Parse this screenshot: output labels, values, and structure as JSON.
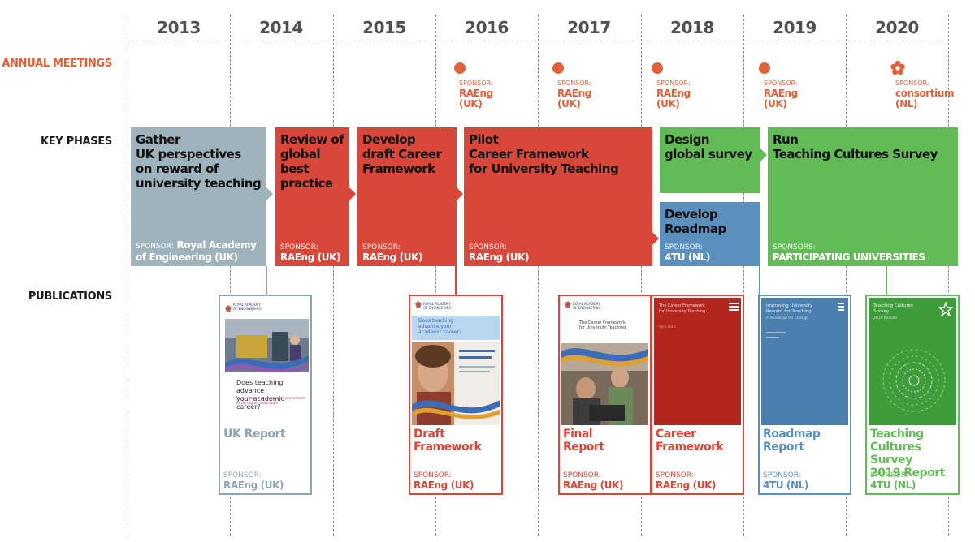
{
  "years": [
    "2013",
    "2014",
    "2015",
    "2016",
    "2017",
    "2018",
    "2019",
    "2020"
  ],
  "row_labels": {
    "meetings": "ANNUAL MEETINGS",
    "phases": "KEY PHASES",
    "publications": "PUBLICATIONS"
  },
  "meetings": [
    {
      "sponsor_label": "SPONSOR:",
      "sponsor": "RAEng",
      "country": "(UK)",
      "icon": "dot-icon"
    },
    {
      "sponsor_label": "SPONSOR:",
      "sponsor": "RAEng",
      "country": "(UK)",
      "icon": "dot-icon"
    },
    {
      "sponsor_label": "SPONSOR:",
      "sponsor": "RAEng",
      "country": "(UK)",
      "icon": "dot-icon"
    },
    {
      "sponsor_label": "SPONSOR:",
      "sponsor": "RAEng",
      "country": "(UK)",
      "icon": "dot-icon"
    },
    {
      "sponsor_label": "SPONSOR:",
      "sponsor": "consortium",
      "country": "(NL)",
      "icon": "flower-icon"
    }
  ],
  "phases": [
    {
      "title": [
        "Gather",
        "UK perspectives",
        "on reward of",
        "university teaching"
      ],
      "sponsor_label": "SPONSOR:",
      "sponsor": "Royal Academy",
      "sponsor2": "of Engineering (UK)",
      "color": "#9fb3bd"
    },
    {
      "title": [
        "Review of",
        "global",
        "best",
        "practice"
      ],
      "sponsor_label": "SPONSOR:",
      "sponsor": "RAEng (UK)",
      "color": "#d9473a"
    },
    {
      "title": [
        "Develop",
        "draft Career",
        "Framework"
      ],
      "sponsor_label": "SPONSOR:",
      "sponsor": "RAEng (UK)",
      "color": "#d9473a"
    },
    {
      "title": [
        "Pilot",
        "Career Framework",
        "for University Teaching"
      ],
      "sponsor_label": "SPONSOR:",
      "sponsor": "RAEng (UK)",
      "color": "#d9473a"
    },
    {
      "title": [
        "Design",
        "global survey"
      ],
      "color": "#62bb57"
    },
    {
      "title": [
        "Develop",
        "Roadmap"
      ],
      "sponsor_label": "SPONSOR:",
      "sponsor": "4TU (NL)",
      "color": "#5b8fbd"
    },
    {
      "title": [
        "Run",
        "Teaching Cultures Survey"
      ],
      "sponsor_label": "SPONSORS:",
      "sponsor": "PARTICIPATING UNIVERSITIES",
      "color": "#62bb57"
    }
  ],
  "publications": [
    {
      "title": [
        "UK Report"
      ],
      "sponsor_label": "SPONSOR:",
      "sponsor": "RAEng (UK)",
      "color": "#8fa6b2",
      "cover_headline": [
        "Does teaching advance",
        "your academic career?"
      ],
      "cover_sub": [
        "Perspectives of promotion procedures",
        "in UK higher education"
      ],
      "cover_logo": "ROYAL ACADEMY OF ENGINEERING"
    },
    {
      "title": [
        "Draft",
        "Framework"
      ],
      "sponsor_label": "SPONSOR:",
      "sponsor": "RAEng (UK)",
      "color": "#d9473a",
      "cover_headline": [
        "Does teaching",
        "advance your",
        "academic career?"
      ],
      "cover_logo": "ROYAL ACADEMY OF ENGINEERING"
    },
    {
      "title": [
        "Final",
        "Report"
      ],
      "sponsor_label": "SPONSOR:",
      "sponsor": "RAEng (UK)",
      "color": "#d9473a",
      "cover_headline": [
        "The Career Framework",
        "for University Teaching"
      ],
      "cover_logo": "ROYAL ACADEMY OF ENGINEERING"
    },
    {
      "title": [
        "Career",
        "Framework"
      ],
      "sponsor_label": "SPONSOR:",
      "sponsor": "RAEng (UK)",
      "color": "#d9473a",
      "cover_headline": [
        "The Career Framework",
        "for University Teaching"
      ],
      "cover_date": "April 2018"
    },
    {
      "title": [
        "Roadmap",
        "Report"
      ],
      "sponsor_label": "SPONSOR:",
      "sponsor": "4TU (NL)",
      "color": "#5b8fbd",
      "cover_headline": [
        "Improving University",
        "Reward for Teaching"
      ],
      "cover_sub": [
        "A Roadmap for Change"
      ]
    },
    {
      "title": [
        "Teaching",
        "Cultures Survey",
        "2019 Report"
      ],
      "sponsor_label": "SPONSOR:",
      "sponsor": "4TU (NL)",
      "color": "#62bb57",
      "cover_headline": [
        "Teaching Cultures",
        "Survey"
      ],
      "cover_sub": [
        "2019 Results"
      ]
    }
  ]
}
